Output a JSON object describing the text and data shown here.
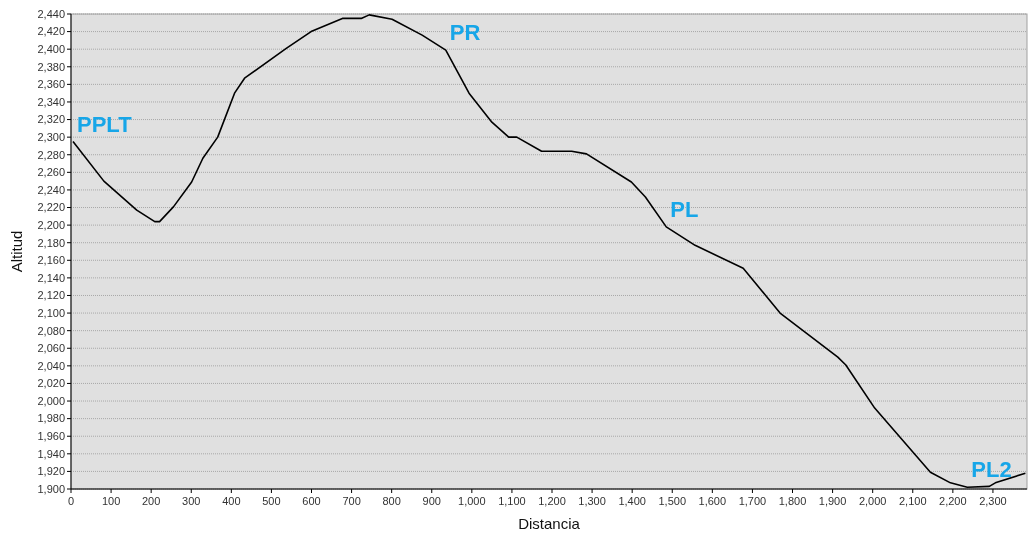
{
  "chart_data": {
    "type": "line",
    "xlabel": "Distancia",
    "ylabel": "Altitud",
    "x": [
      5,
      82,
      164,
      209,
      221,
      256,
      301,
      329,
      366,
      408,
      433,
      537,
      599,
      677,
      724,
      744,
      801,
      876,
      935,
      993,
      1050,
      1092,
      1112,
      1174,
      1249,
      1286,
      1398,
      1433,
      1485,
      1557,
      1677,
      1769,
      1913,
      1933,
      2005,
      2144,
      2194,
      2236,
      2291,
      2306,
      2381
    ],
    "series": [
      {
        "color": "#000000",
        "values": [
          2295,
          2250,
          2217,
          2204,
          2204,
          2221,
          2249,
          2276,
          2300,
          2350,
          2367,
          2401,
          2420,
          2435,
          2435,
          2439,
          2434,
          2416,
          2399,
          2350,
          2317,
          2300,
          2300,
          2284,
          2284,
          2281,
          2249,
          2232,
          2198,
          2177,
          2151,
          2100,
          2050,
          2041,
          1992,
          1919,
          1907,
          1902,
          1903,
          1907,
          1918
        ]
      }
    ],
    "xlim": [
      0,
      2385
    ],
    "xticks": [
      0,
      100,
      200,
      300,
      400,
      500,
      600,
      700,
      800,
      900,
      {
        "value": 1000,
        "label": "1,000"
      },
      {
        "value": 1100,
        "label": "1,100"
      },
      {
        "value": 1200,
        "label": "1,200"
      },
      {
        "value": 1300,
        "label": "1,300"
      },
      {
        "value": 1400,
        "label": "1,400"
      },
      {
        "value": 1500,
        "label": "1,500"
      },
      {
        "value": 1600,
        "label": "1,600"
      },
      {
        "value": 1700,
        "label": "1,700"
      },
      {
        "value": 1800,
        "label": "1,800"
      },
      {
        "value": 1900,
        "label": "1,900"
      },
      {
        "value": 2000,
        "label": "2,000"
      },
      {
        "value": 2100,
        "label": "2,100"
      },
      {
        "value": 2200,
        "label": "2,200"
      },
      {
        "value": 2300,
        "label": "2,300"
      }
    ],
    "ylim": [
      1900,
      2440
    ],
    "yticks": [
      {
        "value": 1900,
        "label": "1,900"
      },
      {
        "value": 1920,
        "label": "1,920"
      },
      {
        "value": 1940,
        "label": "1,940"
      },
      {
        "value": 1960,
        "label": "1,960"
      },
      {
        "value": 1980,
        "label": "1,980"
      },
      {
        "value": 2000,
        "label": "2,000"
      },
      {
        "value": 2020,
        "label": "2,020"
      },
      {
        "value": 2040,
        "label": "2,040"
      },
      {
        "value": 2060,
        "label": "2,060"
      },
      {
        "value": 2080,
        "label": "2,080"
      },
      {
        "value": 2100,
        "label": "2,100"
      },
      {
        "value": 2120,
        "label": "2,120"
      },
      {
        "value": 2140,
        "label": "2,140"
      },
      {
        "value": 2160,
        "label": "2,160"
      },
      {
        "value": 2180,
        "label": "2,180"
      },
      {
        "value": 2200,
        "label": "2,200"
      },
      {
        "value": 2220,
        "label": "2,220"
      },
      {
        "value": 2240,
        "label": "2,240"
      },
      {
        "value": 2260,
        "label": "2,260"
      },
      {
        "value": 2280,
        "label": "2,280"
      },
      {
        "value": 2300,
        "label": "2,300"
      },
      {
        "value": 2320,
        "label": "2,320"
      },
      {
        "value": 2340,
        "label": "2,340"
      },
      {
        "value": 2360,
        "label": "2,360"
      },
      {
        "value": 2380,
        "label": "2,380"
      },
      {
        "value": 2400,
        "label": "2,400"
      },
      {
        "value": 2420,
        "label": "2,420"
      },
      {
        "value": 2440,
        "label": "2,440"
      }
    ],
    "grid": "y",
    "marker": "none",
    "line_style": "solid",
    "annotations": [
      {
        "text": "PPLT",
        "x": 5,
        "y": 2295
      },
      {
        "text": "PR",
        "x": 935,
        "y": 2399
      },
      {
        "text": "PL",
        "x": 1485,
        "y": 2198
      },
      {
        "text": "PL2",
        "x": 2236,
        "y": 1902
      }
    ]
  }
}
